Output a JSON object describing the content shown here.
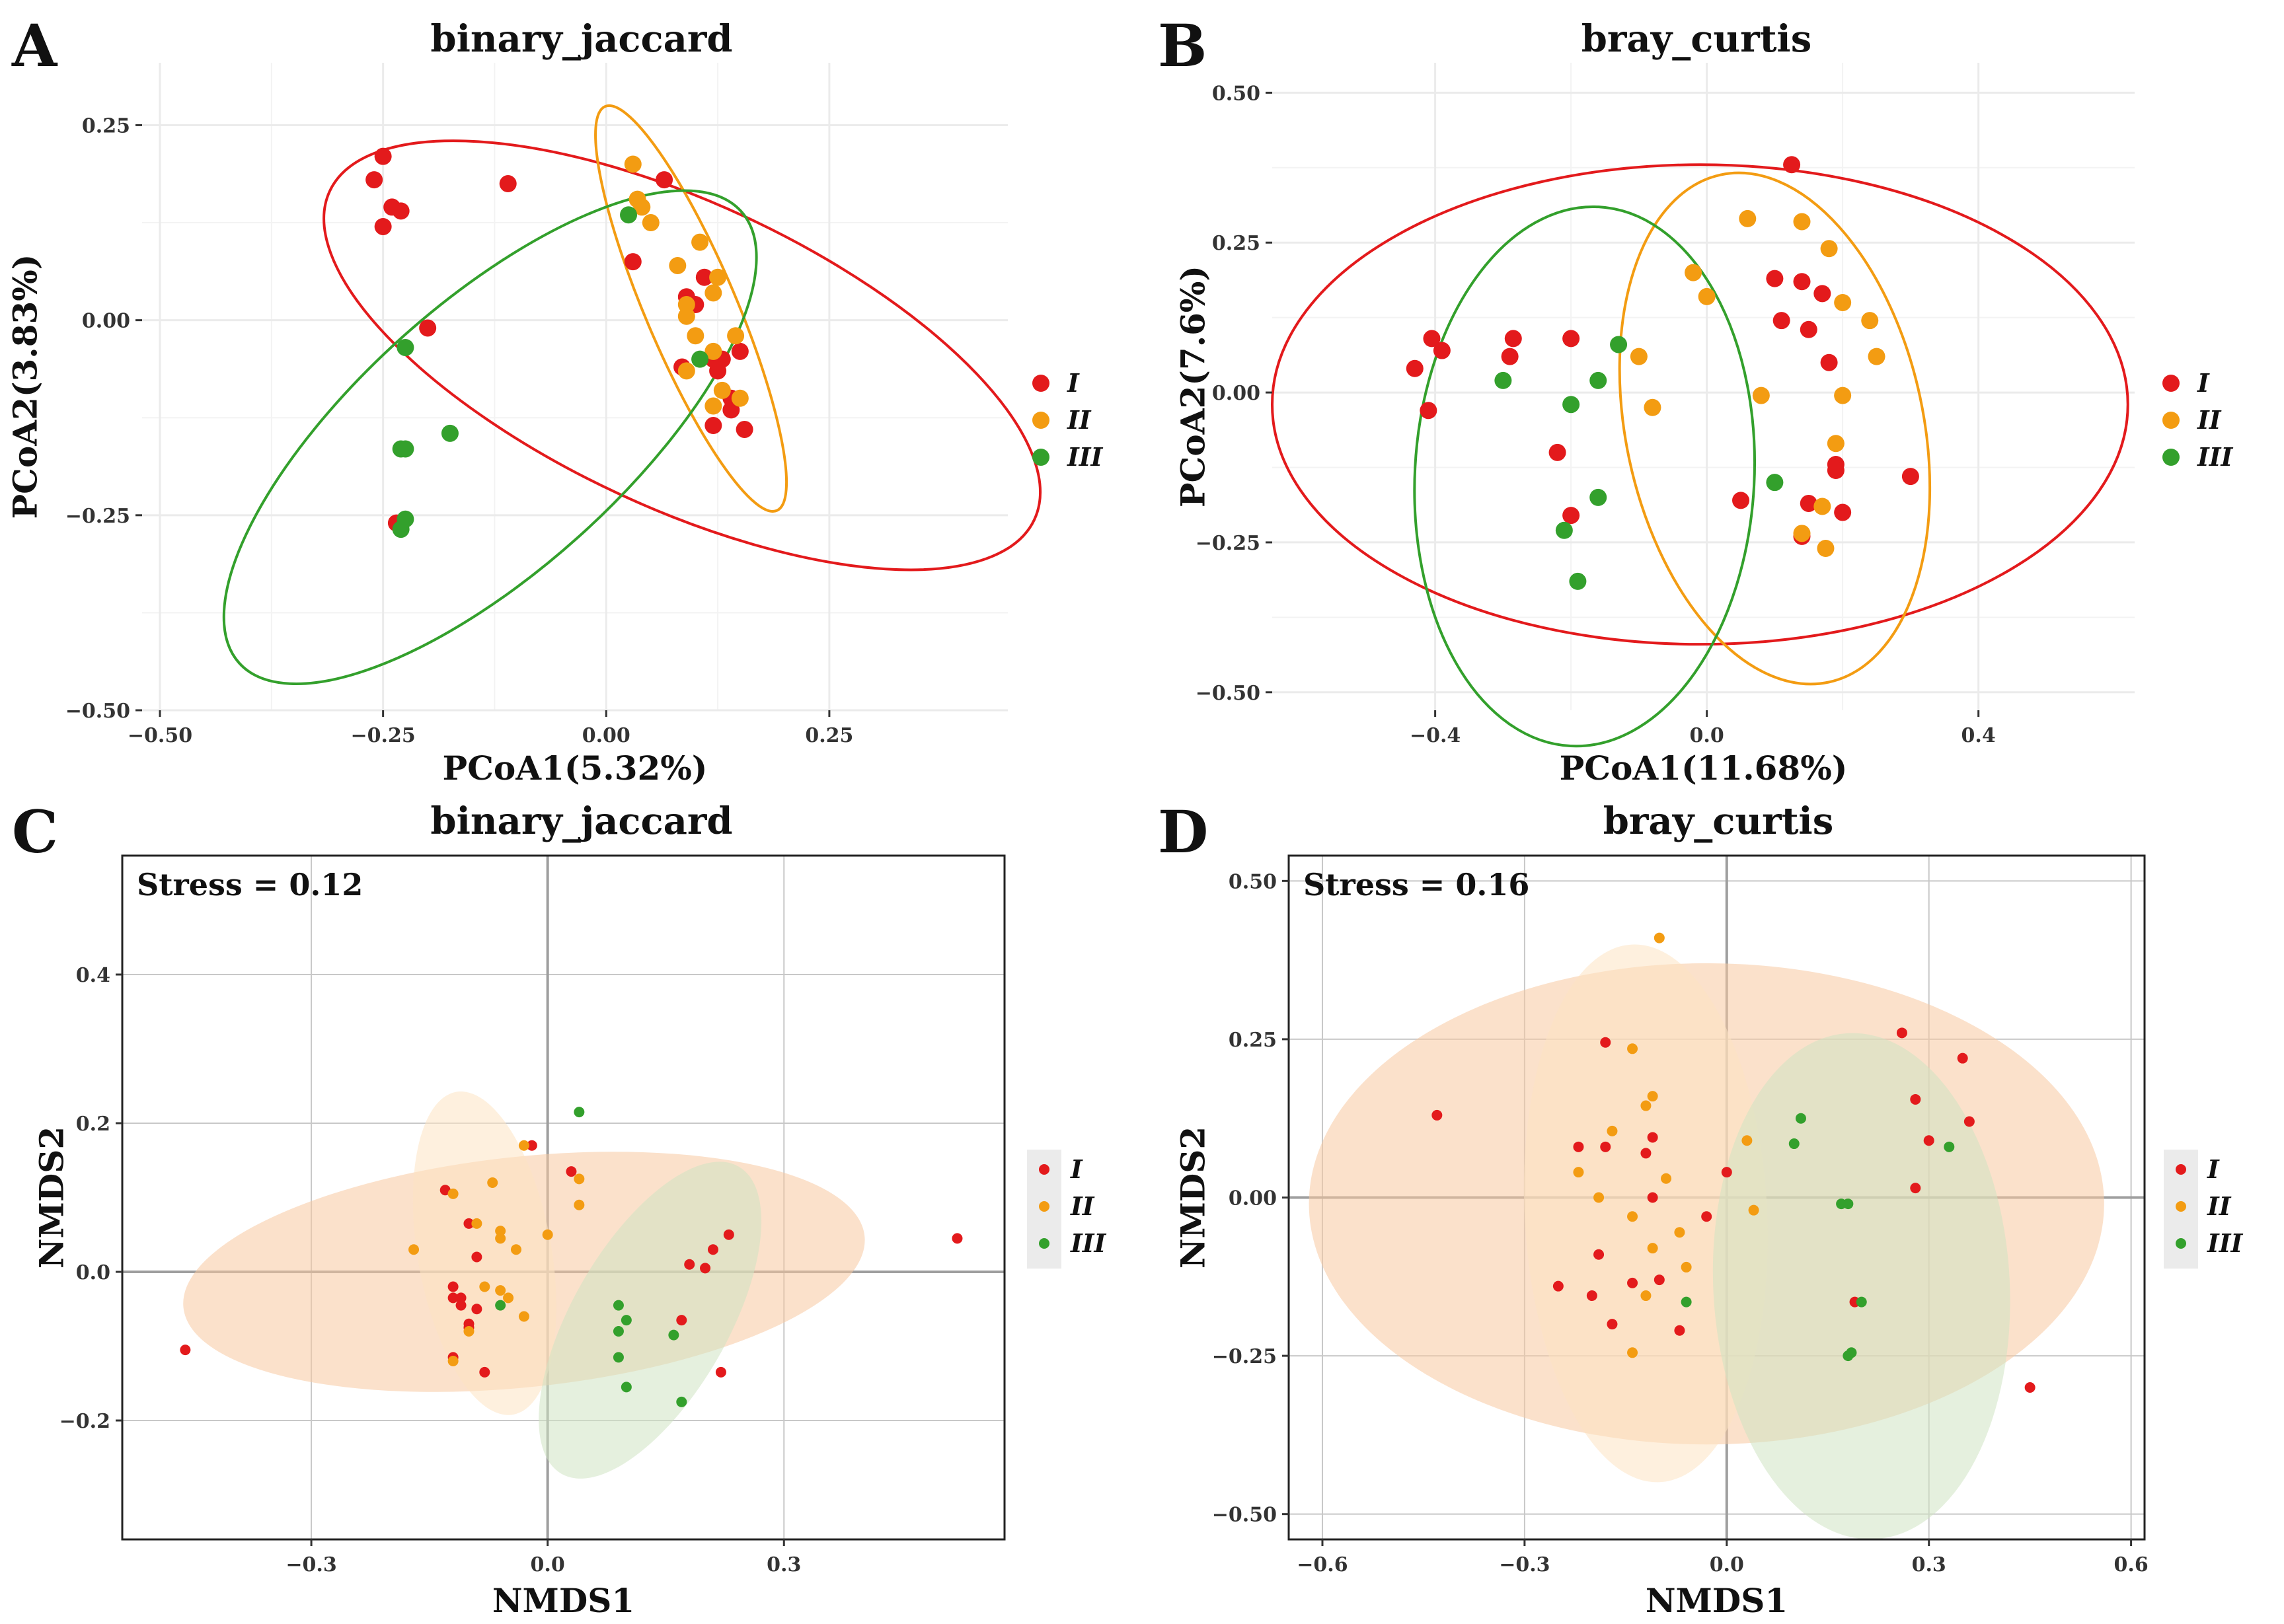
{
  "colors": {
    "I": "#e31a1c",
    "II": "#f39c12",
    "III": "#33a02c"
  },
  "groups": [
    "I",
    "II",
    "III"
  ],
  "chart_data": [
    {
      "id": "A",
      "letter": "A",
      "type": "scatter",
      "title": "binary_jaccard",
      "xlabel": "PCoA1(5.32%)",
      "ylabel": "PCoA2(3.83%)",
      "xlim": [
        -0.52,
        0.45
      ],
      "ylim": [
        -0.5,
        0.33
      ],
      "xticks": [
        -0.5,
        -0.25,
        0.0,
        0.25
      ],
      "xtick_labels": [
        "−0.50",
        "−0.25",
        "0.00",
        "0.25"
      ],
      "yticks": [
        -0.5,
        -0.25,
        0.0,
        0.25
      ],
      "ytick_labels": [
        "−0.50",
        "−0.25",
        "0.00",
        "0.25"
      ],
      "ellipse_style": "outline",
      "series": [
        {
          "name": "I",
          "points": [
            [
              -0.26,
              0.18
            ],
            [
              -0.25,
              0.21
            ],
            [
              -0.24,
              0.145
            ],
            [
              -0.25,
              0.12
            ],
            [
              -0.23,
              0.14
            ],
            [
              -0.2,
              -0.01
            ],
            [
              -0.11,
              0.175
            ],
            [
              0.03,
              0.075
            ],
            [
              0.065,
              0.18
            ],
            [
              0.09,
              0.03
            ],
            [
              0.1,
              0.02
            ],
            [
              0.11,
              0.055
            ],
            [
              0.12,
              -0.05
            ],
            [
              0.13,
              -0.05
            ],
            [
              0.125,
              -0.065
            ],
            [
              0.14,
              -0.1
            ],
            [
              0.15,
              -0.04
            ],
            [
              0.14,
              -0.115
            ],
            [
              0.155,
              -0.14
            ],
            [
              0.12,
              -0.135
            ],
            [
              0.085,
              -0.06
            ],
            [
              -0.235,
              -0.26
            ]
          ]
        },
        {
          "name": "II",
          "points": [
            [
              0.03,
              0.2
            ],
            [
              0.035,
              0.155
            ],
            [
              0.04,
              0.145
            ],
            [
              0.05,
              0.125
            ],
            [
              0.08,
              0.07
            ],
            [
              0.105,
              0.1
            ],
            [
              0.09,
              0.02
            ],
            [
              0.09,
              0.005
            ],
            [
              0.1,
              -0.02
            ],
            [
              0.12,
              -0.04
            ],
            [
              0.12,
              0.035
            ],
            [
              0.125,
              0.055
            ],
            [
              0.13,
              -0.09
            ],
            [
              0.145,
              -0.02
            ],
            [
              0.15,
              -0.1
            ],
            [
              0.12,
              -0.11
            ],
            [
              0.09,
              -0.065
            ]
          ]
        },
        {
          "name": "III",
          "points": [
            [
              0.025,
              0.135
            ],
            [
              0.105,
              -0.05
            ],
            [
              -0.225,
              -0.035
            ],
            [
              -0.23,
              -0.165
            ],
            [
              -0.225,
              -0.165
            ],
            [
              -0.175,
              -0.145
            ],
            [
              -0.225,
              -0.255
            ],
            [
              -0.23,
              -0.268
            ]
          ]
        }
      ],
      "ellipses": [
        {
          "name": "I",
          "cx": 0.085,
          "cy": -0.045,
          "rx": 0.445,
          "ry": 0.19,
          "angle": -25
        },
        {
          "name": "II",
          "cx": 0.095,
          "cy": 0.015,
          "rx": 0.275,
          "ry": 0.052,
          "angle": -67
        },
        {
          "name": "III",
          "cx": -0.13,
          "cy": -0.15,
          "rx": 0.4,
          "ry": 0.16,
          "angle": 42
        }
      ]
    },
    {
      "id": "B",
      "letter": "B",
      "type": "scatter",
      "title": "bray_curtis",
      "xlabel": "PCoA1(11.68%)",
      "ylabel": "PCoA2(7.6%)",
      "xlim": [
        -0.64,
        0.63
      ],
      "ylim": [
        -0.53,
        0.55
      ],
      "xticks": [
        -0.4,
        0.0,
        0.4
      ],
      "xtick_labels": [
        "−0.4",
        "0.0",
        "0.4"
      ],
      "yticks": [
        -0.5,
        -0.25,
        0.0,
        0.25,
        0.5
      ],
      "ytick_labels": [
        "−0.50",
        "−0.25",
        "0.00",
        "0.25",
        "0.50"
      ],
      "ellipse_style": "outline",
      "series": [
        {
          "name": "I",
          "points": [
            [
              -0.43,
              0.04
            ],
            [
              -0.41,
              -0.03
            ],
            [
              -0.405,
              0.09
            ],
            [
              -0.39,
              0.07
            ],
            [
              -0.29,
              0.06
            ],
            [
              -0.285,
              0.09
            ],
            [
              -0.2,
              0.09
            ],
            [
              -0.22,
              -0.1
            ],
            [
              -0.2,
              -0.205
            ],
            [
              0.125,
              0.38
            ],
            [
              0.1,
              0.19
            ],
            [
              0.14,
              0.185
            ],
            [
              0.17,
              0.165
            ],
            [
              0.11,
              0.12
            ],
            [
              0.15,
              0.105
            ],
            [
              0.18,
              0.05
            ],
            [
              0.19,
              -0.12
            ],
            [
              0.19,
              -0.13
            ],
            [
              0.3,
              -0.14
            ],
            [
              0.05,
              -0.18
            ],
            [
              0.15,
              -0.185
            ],
            [
              0.14,
              -0.24
            ],
            [
              0.2,
              -0.2
            ]
          ]
        },
        {
          "name": "II",
          "points": [
            [
              0.06,
              0.29
            ],
            [
              0.14,
              0.285
            ],
            [
              0.18,
              0.24
            ],
            [
              -0.02,
              0.2
            ],
            [
              0.0,
              0.16
            ],
            [
              0.2,
              0.15
            ],
            [
              0.24,
              0.12
            ],
            [
              0.25,
              0.06
            ],
            [
              -0.1,
              0.06
            ],
            [
              0.08,
              -0.005
            ],
            [
              0.2,
              -0.005
            ],
            [
              -0.08,
              -0.025
            ],
            [
              0.19,
              -0.085
            ],
            [
              0.17,
              -0.19
            ],
            [
              0.175,
              -0.26
            ],
            [
              0.14,
              -0.235
            ]
          ]
        },
        {
          "name": "III",
          "points": [
            [
              -0.13,
              0.08
            ],
            [
              -0.3,
              0.02
            ],
            [
              -0.16,
              0.02
            ],
            [
              -0.2,
              -0.02
            ],
            [
              -0.16,
              -0.175
            ],
            [
              -0.21,
              -0.23
            ],
            [
              -0.19,
              -0.315
            ],
            [
              0.1,
              -0.15
            ]
          ]
        }
      ],
      "ellipses": [
        {
          "name": "I",
          "cx": -0.01,
          "cy": -0.02,
          "rx": 0.63,
          "ry": 0.4,
          "angle": 0
        },
        {
          "name": "II",
          "cx": 0.1,
          "cy": -0.06,
          "rx": 0.43,
          "ry": 0.22,
          "angle": -78
        },
        {
          "name": "III",
          "cx": -0.18,
          "cy": -0.14,
          "rx": 0.45,
          "ry": 0.25,
          "angle": -93
        }
      ]
    },
    {
      "id": "C",
      "letter": "C",
      "type": "scatter",
      "title": "binary_jaccard",
      "xlabel": "NMDS1",
      "ylabel": "NMDS2",
      "xlim": [
        -0.54,
        0.58
      ],
      "ylim": [
        -0.36,
        0.56
      ],
      "xticks": [
        -0.3,
        0.0,
        0.3
      ],
      "xtick_labels": [
        "−0.3",
        "0.0",
        "0.3"
      ],
      "yticks": [
        -0.2,
        0.0,
        0.2,
        0.4
      ],
      "ytick_labels": [
        "−0.2",
        "0.0",
        "0.2",
        "0.4"
      ],
      "ellipse_style": "filled",
      "stress": "Stress = 0.12",
      "series": [
        {
          "name": "I",
          "points": [
            [
              -0.46,
              -0.105
            ],
            [
              -0.13,
              0.11
            ],
            [
              -0.12,
              -0.02
            ],
            [
              -0.12,
              -0.035
            ],
            [
              -0.1,
              -0.07
            ],
            [
              -0.11,
              -0.035
            ],
            [
              -0.11,
              -0.045
            ],
            [
              -0.1,
              -0.075
            ],
            [
              -0.09,
              -0.05
            ],
            [
              -0.08,
              -0.135
            ],
            [
              -0.12,
              -0.115
            ],
            [
              -0.1,
              0.065
            ],
            [
              -0.09,
              0.02
            ],
            [
              -0.02,
              0.17
            ],
            [
              0.03,
              0.135
            ],
            [
              0.17,
              -0.065
            ],
            [
              0.18,
              0.01
            ],
            [
              0.2,
              0.005
            ],
            [
              0.21,
              0.03
            ],
            [
              0.23,
              0.05
            ],
            [
              0.22,
              -0.135
            ],
            [
              0.52,
              0.045
            ]
          ]
        },
        {
          "name": "II",
          "points": [
            [
              -0.17,
              0.03
            ],
            [
              -0.12,
              0.105
            ],
            [
              -0.12,
              -0.12
            ],
            [
              -0.1,
              -0.08
            ],
            [
              -0.08,
              -0.02
            ],
            [
              -0.07,
              0.12
            ],
            [
              -0.06,
              0.055
            ],
            [
              -0.06,
              0.045
            ],
            [
              -0.06,
              -0.025
            ],
            [
              -0.05,
              -0.035
            ],
            [
              -0.04,
              0.03
            ],
            [
              -0.03,
              -0.06
            ],
            [
              -0.03,
              0.17
            ],
            [
              0.0,
              0.05
            ],
            [
              0.04,
              0.125
            ],
            [
              0.04,
              0.09
            ],
            [
              -0.09,
              0.065
            ]
          ]
        },
        {
          "name": "III",
          "points": [
            [
              0.04,
              0.215
            ],
            [
              -0.06,
              -0.045
            ],
            [
              0.09,
              -0.045
            ],
            [
              0.09,
              -0.08
            ],
            [
              0.1,
              -0.065
            ],
            [
              0.09,
              -0.115
            ],
            [
              0.1,
              -0.155
            ],
            [
              0.16,
              -0.085
            ],
            [
              0.17,
              -0.175
            ]
          ]
        }
      ],
      "ellipses": [
        {
          "name": "I",
          "cx": -0.03,
          "cy": 0.0,
          "rx": 0.435,
          "ry": 0.155,
          "angle": 6
        },
        {
          "name": "II",
          "cx": -0.08,
          "cy": 0.025,
          "rx": 0.22,
          "ry": 0.085,
          "angle": -80
        },
        {
          "name": "III",
          "cx": 0.13,
          "cy": -0.065,
          "rx": 0.235,
          "ry": 0.1,
          "angle": 60
        }
      ]
    },
    {
      "id": "D",
      "letter": "D",
      "type": "scatter",
      "title": "bray_curtis",
      "xlabel": "NMDS1",
      "ylabel": "NMDS2",
      "xlim": [
        -0.65,
        0.62
      ],
      "ylim": [
        -0.54,
        0.54
      ],
      "xticks": [
        -0.6,
        -0.3,
        0.0,
        0.3,
        0.6
      ],
      "xtick_labels": [
        "−0.6",
        "−0.3",
        "0.0",
        "0.3",
        "0.6"
      ],
      "yticks": [
        -0.5,
        -0.25,
        0.0,
        0.25,
        0.5
      ],
      "ytick_labels": [
        "−0.50",
        "−0.25",
        "0.00",
        "0.25",
        "0.50"
      ],
      "ellipse_style": "filled",
      "stress": "Stress = 0.16",
      "series": [
        {
          "name": "I",
          "points": [
            [
              -0.43,
              0.13
            ],
            [
              -0.18,
              0.245
            ],
            [
              -0.22,
              0.08
            ],
            [
              -0.18,
              0.08
            ],
            [
              -0.11,
              0.095
            ],
            [
              -0.12,
              0.07
            ],
            [
              -0.11,
              0.0
            ],
            [
              -0.19,
              -0.09
            ],
            [
              -0.25,
              -0.14
            ],
            [
              -0.2,
              -0.155
            ],
            [
              -0.14,
              -0.135
            ],
            [
              -0.1,
              -0.13
            ],
            [
              -0.17,
              -0.2
            ],
            [
              -0.07,
              -0.21
            ],
            [
              0.0,
              0.04
            ],
            [
              -0.03,
              -0.03
            ],
            [
              0.26,
              0.26
            ],
            [
              0.28,
              0.155
            ],
            [
              0.35,
              0.22
            ],
            [
              0.36,
              0.12
            ],
            [
              0.3,
              0.09
            ],
            [
              0.28,
              0.015
            ],
            [
              0.19,
              -0.165
            ],
            [
              0.45,
              -0.3
            ]
          ]
        },
        {
          "name": "II",
          "points": [
            [
              -0.1,
              0.41
            ],
            [
              -0.14,
              0.235
            ],
            [
              -0.11,
              0.16
            ],
            [
              -0.12,
              0.145
            ],
            [
              -0.17,
              0.105
            ],
            [
              -0.22,
              0.04
            ],
            [
              -0.09,
              0.03
            ],
            [
              -0.19,
              0.0
            ],
            [
              -0.14,
              -0.03
            ],
            [
              -0.11,
              -0.08
            ],
            [
              -0.12,
              -0.155
            ],
            [
              -0.14,
              -0.245
            ],
            [
              -0.07,
              -0.055
            ],
            [
              -0.06,
              -0.11
            ],
            [
              0.03,
              0.09
            ],
            [
              0.04,
              -0.02
            ]
          ]
        },
        {
          "name": "III",
          "points": [
            [
              0.11,
              0.125
            ],
            [
              0.1,
              0.085
            ],
            [
              0.17,
              -0.01
            ],
            [
              0.18,
              -0.01
            ],
            [
              0.33,
              0.08
            ],
            [
              -0.06,
              -0.165
            ],
            [
              0.2,
              -0.165
            ],
            [
              0.18,
              -0.25
            ],
            [
              0.185,
              -0.245
            ]
          ]
        }
      ],
      "ellipses": [
        {
          "name": "I",
          "cx": -0.03,
          "cy": -0.01,
          "rx": 0.59,
          "ry": 0.38,
          "angle": 0
        },
        {
          "name": "II",
          "cx": -0.12,
          "cy": -0.025,
          "rx": 0.425,
          "ry": 0.18,
          "angle": -87
        },
        {
          "name": "III",
          "cx": 0.2,
          "cy": -0.14,
          "rx": 0.4,
          "ry": 0.22,
          "angle": -87
        }
      ]
    }
  ]
}
